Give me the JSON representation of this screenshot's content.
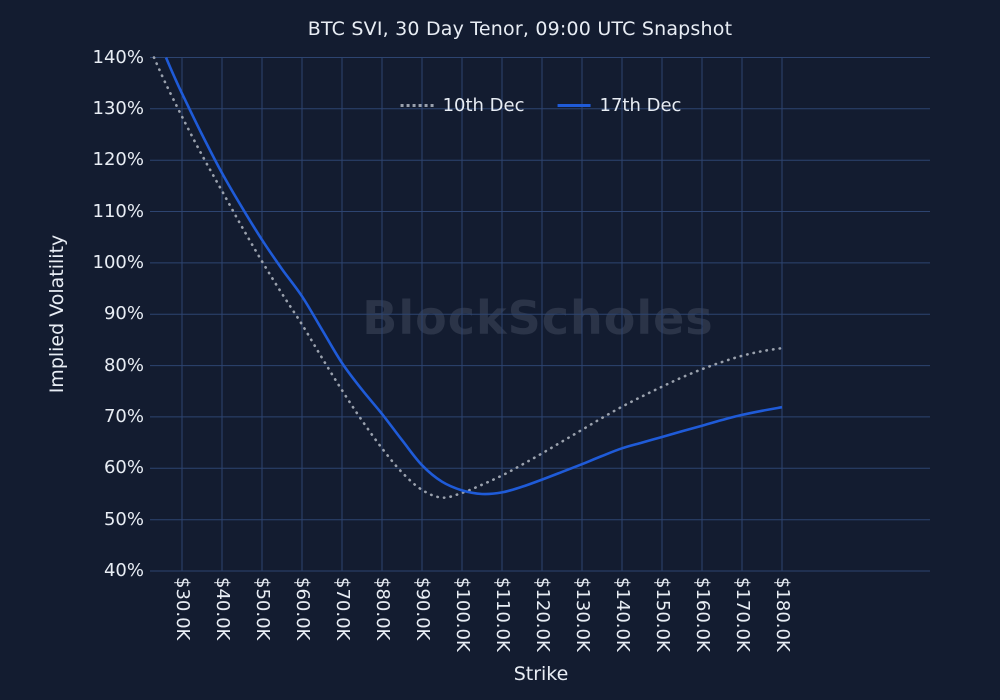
{
  "title": "BTC SVI, 30 Day Tenor, 09:00 UTC Snapshot",
  "watermark": "BlockScholes",
  "colors": {
    "background": "#131c30",
    "grid": "#2d4470",
    "text": "#e8edf4",
    "blue_line": "#1f5bd8",
    "gray_line": "#9aa1ad",
    "watermark": "rgba(138,150,168,0.20)"
  },
  "legend": {
    "items": [
      {
        "label": "10th Dec",
        "style": "dotted"
      },
      {
        "label": "17th Dec",
        "style": "solid"
      }
    ]
  },
  "chart_data": {
    "type": "line",
    "title": "BTC SVI, 30 Day Tenor, 09:00 UTC Snapshot",
    "xlabel": "Strike",
    "ylabel": "Implied Volatility",
    "x_unit": "USD thousands",
    "y_unit": "percent",
    "xlim": [
      22,
      217
    ],
    "ylim": [
      40,
      140
    ],
    "grid": true,
    "legend_position": "top-center",
    "x_tick_values": [
      30,
      40,
      50,
      60,
      70,
      80,
      90,
      100,
      110,
      120,
      130,
      140,
      150,
      160,
      170,
      180
    ],
    "x_tick_labels": [
      "$30.0K",
      "$40.0K",
      "$50.0K",
      "$60.0K",
      "$70.0K",
      "$80.0K",
      "$90.0K",
      "$100.0K",
      "$110.0K",
      "$120.0K",
      "$130.0K",
      "$140.0K",
      "$150.0K",
      "$160.0K",
      "$170.0K",
      "$180.0K"
    ],
    "y_tick_values": [
      40,
      50,
      60,
      70,
      80,
      90,
      100,
      110,
      120,
      130,
      140
    ],
    "y_tick_labels": [
      "40%",
      "50%",
      "60%",
      "70%",
      "80%",
      "90%",
      "100%",
      "110%",
      "120%",
      "130%",
      "140%"
    ],
    "series": [
      {
        "name": "10th Dec",
        "dash": "dotted",
        "color": "#9aa1ad",
        "points": [
          [
            23,
            140
          ],
          [
            26,
            134.8
          ],
          [
            30,
            128.5
          ],
          [
            35,
            121
          ],
          [
            40,
            114
          ],
          [
            45,
            107
          ],
          [
            50,
            100.3
          ],
          [
            55,
            94
          ],
          [
            60,
            88
          ],
          [
            65,
            81.5
          ],
          [
            70,
            75.2
          ],
          [
            75,
            69.3
          ],
          [
            80,
            63.9
          ],
          [
            85,
            59.2
          ],
          [
            90,
            55.8
          ],
          [
            95,
            54.3
          ],
          [
            100,
            55.2
          ],
          [
            105,
            56.8
          ],
          [
            110,
            58.6
          ],
          [
            115,
            60.7
          ],
          [
            120,
            62.9
          ],
          [
            125,
            65.2
          ],
          [
            130,
            67.5
          ],
          [
            135,
            69.8
          ],
          [
            140,
            72
          ],
          [
            145,
            74
          ],
          [
            150,
            75.9
          ],
          [
            155,
            77.7
          ],
          [
            160,
            79.3
          ],
          [
            165,
            80.7
          ],
          [
            170,
            81.9
          ],
          [
            175,
            82.8
          ],
          [
            180,
            83.4
          ]
        ]
      },
      {
        "name": "17th Dec",
        "dash": "solid",
        "color": "#1f5bd8",
        "points": [
          [
            26,
            140
          ],
          [
            28,
            136.4
          ],
          [
            30,
            133
          ],
          [
            35,
            125
          ],
          [
            40,
            117.5
          ],
          [
            45,
            110.8
          ],
          [
            50,
            104.5
          ],
          [
            55,
            98.8
          ],
          [
            60,
            93.5
          ],
          [
            65,
            87
          ],
          [
            70,
            80.5
          ],
          [
            75,
            75.3
          ],
          [
            80,
            70.6
          ],
          [
            85,
            65.5
          ],
          [
            90,
            60.6
          ],
          [
            95,
            57.4
          ],
          [
            100,
            55.7
          ],
          [
            105,
            55
          ],
          [
            110,
            55.3
          ],
          [
            115,
            56.4
          ],
          [
            120,
            57.8
          ],
          [
            125,
            59.3
          ],
          [
            130,
            60.8
          ],
          [
            135,
            62.4
          ],
          [
            140,
            63.9
          ],
          [
            145,
            65
          ],
          [
            150,
            66.1
          ],
          [
            155,
            67.2
          ],
          [
            160,
            68.3
          ],
          [
            165,
            69.4
          ],
          [
            170,
            70.4
          ],
          [
            175,
            71.2
          ],
          [
            180,
            71.9
          ]
        ]
      }
    ]
  }
}
